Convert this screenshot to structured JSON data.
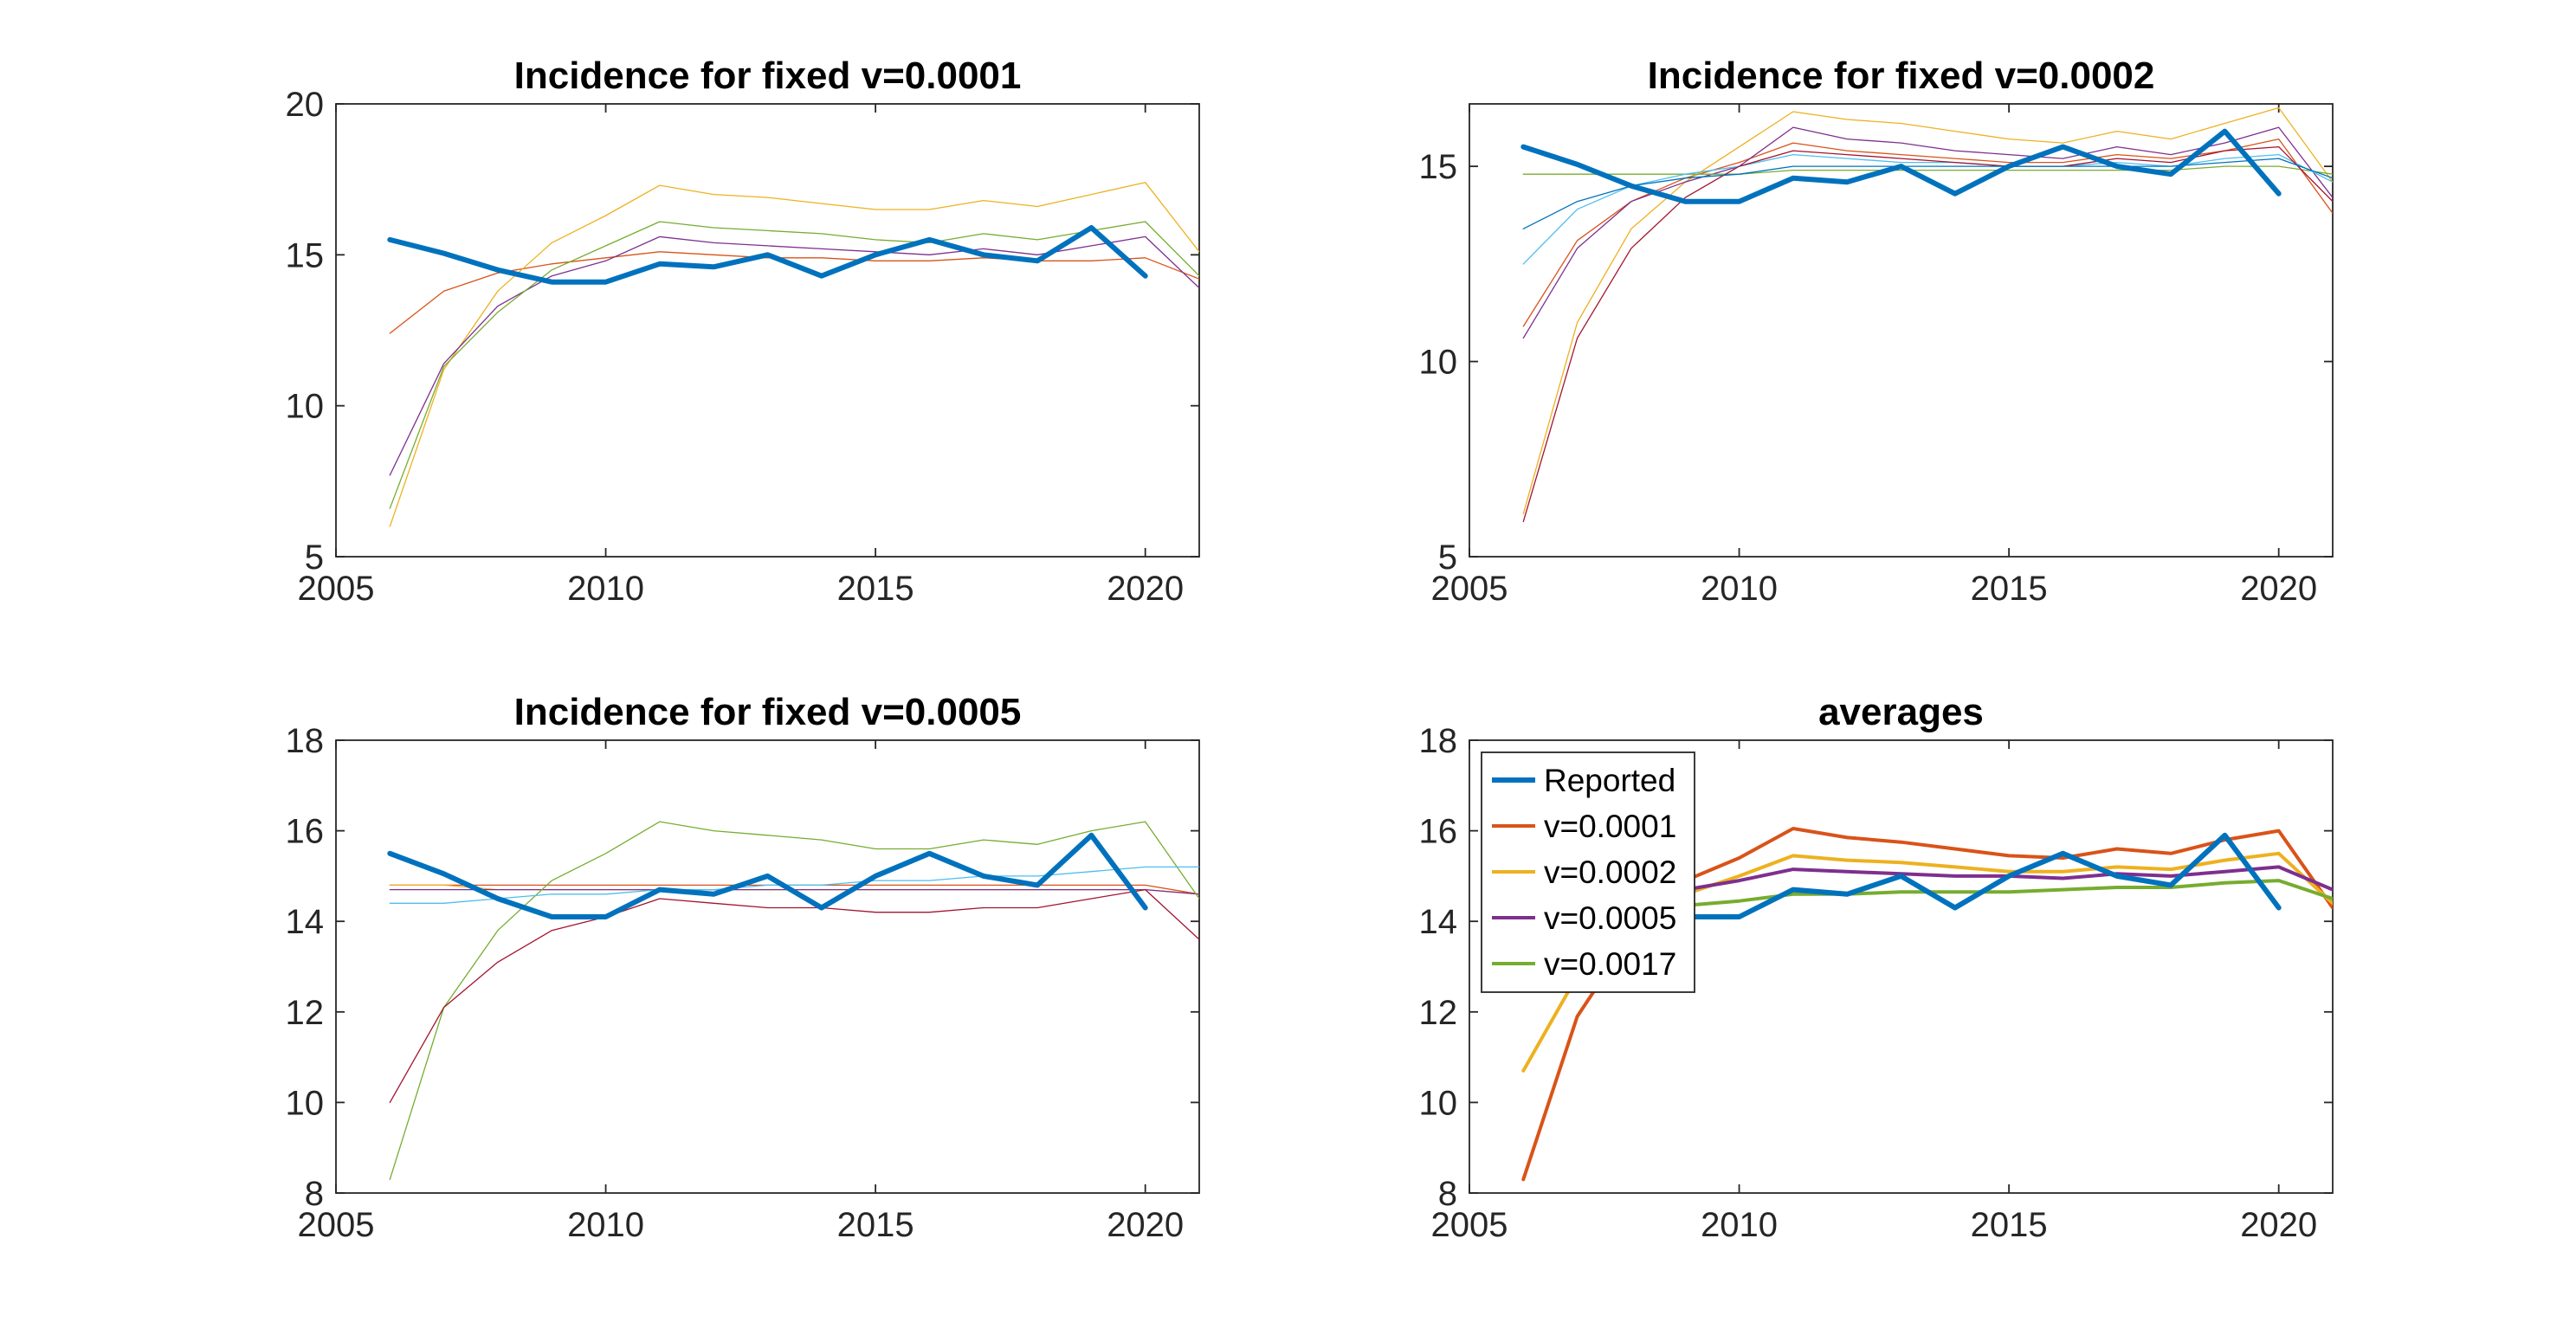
{
  "chart_data": [
    {
      "type": "line",
      "title": "Incidence for fixed v=0.0001",
      "xlim": [
        2005,
        2021
      ],
      "ylim": [
        5,
        20
      ],
      "xticks": [
        2005,
        2010,
        2015,
        2020
      ],
      "yticks": [
        5,
        10,
        15,
        20
      ],
      "x": [
        2006,
        2007,
        2008,
        2009,
        2010,
        2011,
        2012,
        2013,
        2014,
        2015,
        2016,
        2017,
        2018,
        2019,
        2020,
        2021
      ],
      "series": [
        {
          "color": "#0072BD",
          "width": 6,
          "values": [
            15.5,
            15.05,
            14.5,
            14.1,
            14.1,
            14.7,
            14.6,
            15.0,
            14.3,
            15.0,
            15.5,
            15.0,
            14.8,
            15.9,
            14.3,
            null
          ]
        },
        {
          "color": "#D95319",
          "width": 1.3,
          "values": [
            12.4,
            13.8,
            14.4,
            14.7,
            14.9,
            15.1,
            15.0,
            14.9,
            14.9,
            14.8,
            14.8,
            14.9,
            14.8,
            14.8,
            14.9,
            14.2
          ]
        },
        {
          "color": "#EDB120",
          "width": 1.3,
          "values": [
            6.0,
            11.2,
            13.8,
            15.4,
            16.3,
            17.3,
            17.0,
            16.9,
            16.7,
            16.5,
            16.5,
            16.8,
            16.6,
            17.0,
            17.4,
            15.1
          ]
        },
        {
          "color": "#7E2F8E",
          "width": 1.3,
          "values": [
            7.7,
            11.4,
            13.3,
            14.3,
            14.8,
            15.6,
            15.4,
            15.3,
            15.2,
            15.1,
            15.0,
            15.2,
            15.0,
            15.3,
            15.6,
            13.9
          ]
        },
        {
          "color": "#77AC30",
          "width": 1.3,
          "values": [
            6.6,
            11.3,
            13.1,
            14.5,
            15.3,
            16.1,
            15.9,
            15.8,
            15.7,
            15.5,
            15.4,
            15.7,
            15.5,
            15.8,
            16.1,
            14.3
          ]
        }
      ]
    },
    {
      "type": "line",
      "title": "Incidence for fixed v=0.0002",
      "xlim": [
        2005,
        2021
      ],
      "ylim": [
        5,
        16.6
      ],
      "xticks": [
        2005,
        2010,
        2015,
        2020
      ],
      "yticks": [
        5,
        10,
        15
      ],
      "x": [
        2006,
        2007,
        2008,
        2009,
        2010,
        2011,
        2012,
        2013,
        2014,
        2015,
        2016,
        2017,
        2018,
        2019,
        2020,
        2021
      ],
      "series": [
        {
          "color": "#0072BD",
          "width": 6,
          "values": [
            15.5,
            15.05,
            14.5,
            14.1,
            14.1,
            14.7,
            14.6,
            15.0,
            14.3,
            15.0,
            15.5,
            15.0,
            14.8,
            15.9,
            14.3,
            null
          ]
        },
        {
          "color": "#D95319",
          "width": 1.3,
          "values": [
            10.9,
            13.1,
            14.1,
            14.7,
            15.1,
            15.6,
            15.4,
            15.3,
            15.2,
            15.1,
            15.1,
            15.3,
            15.2,
            15.4,
            15.7,
            13.8
          ]
        },
        {
          "color": "#EDB120",
          "width": 1.3,
          "values": [
            6.1,
            11.0,
            13.4,
            14.6,
            15.5,
            16.4,
            16.2,
            16.1,
            15.9,
            15.7,
            15.6,
            15.9,
            15.7,
            16.1,
            16.5,
            14.6
          ]
        },
        {
          "color": "#7E2F8E",
          "width": 1.3,
          "values": [
            10.6,
            12.9,
            14.1,
            14.6,
            15.0,
            16.0,
            15.7,
            15.6,
            15.4,
            15.3,
            15.2,
            15.5,
            15.3,
            15.6,
            16.0,
            14.2
          ]
        },
        {
          "color": "#77AC30",
          "width": 1.3,
          "values": [
            14.8,
            14.8,
            14.8,
            14.8,
            14.8,
            14.9,
            14.9,
            14.9,
            14.9,
            14.9,
            14.9,
            14.9,
            14.9,
            15.0,
            15.0,
            14.8
          ]
        },
        {
          "color": "#4DBEEE",
          "width": 1.3,
          "values": [
            12.5,
            13.9,
            14.5,
            14.8,
            15.0,
            15.3,
            15.2,
            15.1,
            15.1,
            15.0,
            15.0,
            15.1,
            15.0,
            15.2,
            15.3,
            14.6
          ]
        },
        {
          "color": "#A2142F",
          "width": 1.3,
          "values": [
            5.9,
            10.6,
            12.9,
            14.2,
            15.0,
            15.4,
            15.3,
            15.2,
            15.1,
            15.0,
            15.0,
            15.2,
            15.1,
            15.4,
            15.5,
            14.1
          ]
        },
        {
          "color": "#0072BD",
          "width": 1.3,
          "values": [
            13.4,
            14.1,
            14.5,
            14.7,
            14.8,
            15.0,
            15.0,
            15.0,
            15.0,
            15.0,
            15.0,
            15.0,
            15.0,
            15.1,
            15.2,
            14.7
          ]
        }
      ]
    },
    {
      "type": "line",
      "title": "Incidence for fixed v=0.0005",
      "xlim": [
        2005,
        2021
      ],
      "ylim": [
        8,
        18
      ],
      "xticks": [
        2005,
        2010,
        2015,
        2020
      ],
      "yticks": [
        8,
        10,
        12,
        14,
        16,
        18
      ],
      "x": [
        2006,
        2007,
        2008,
        2009,
        2010,
        2011,
        2012,
        2013,
        2014,
        2015,
        2016,
        2017,
        2018,
        2019,
        2020,
        2021
      ],
      "series": [
        {
          "color": "#0072BD",
          "width": 6,
          "values": [
            15.5,
            15.05,
            14.5,
            14.1,
            14.1,
            14.7,
            14.6,
            15.0,
            14.3,
            15.0,
            15.5,
            15.0,
            14.8,
            15.9,
            14.3,
            null
          ]
        },
        {
          "color": "#D95319",
          "width": 1.3,
          "values": [
            14.8,
            14.8,
            14.8,
            14.8,
            14.8,
            14.8,
            14.8,
            14.8,
            14.8,
            14.8,
            14.8,
            14.8,
            14.8,
            14.8,
            14.8,
            14.6
          ]
        },
        {
          "color": "#EDB120",
          "width": 1.3,
          "values": [
            14.8,
            14.8,
            14.7,
            14.7,
            14.7,
            14.7,
            14.7,
            14.7,
            14.7,
            14.7,
            14.7,
            14.7,
            14.7,
            14.7,
            14.7,
            14.6
          ]
        },
        {
          "color": "#7E2F8E",
          "width": 1.3,
          "values": [
            14.7,
            14.7,
            14.7,
            14.7,
            14.7,
            14.7,
            14.7,
            14.7,
            14.7,
            14.7,
            14.7,
            14.7,
            14.7,
            14.7,
            14.7,
            14.6
          ]
        },
        {
          "color": "#77AC30",
          "width": 1.3,
          "values": [
            8.3,
            12.1,
            13.8,
            14.9,
            15.5,
            16.2,
            16.0,
            15.9,
            15.8,
            15.6,
            15.6,
            15.8,
            15.7,
            16.0,
            16.2,
            14.5
          ]
        },
        {
          "color": "#4DBEEE",
          "width": 1.3,
          "values": [
            14.4,
            14.4,
            14.5,
            14.6,
            14.6,
            14.7,
            14.7,
            14.8,
            14.8,
            14.9,
            14.9,
            15.0,
            15.0,
            15.1,
            15.2,
            15.2
          ]
        },
        {
          "color": "#A2142F",
          "width": 1.3,
          "values": [
            10.0,
            12.1,
            13.1,
            13.8,
            14.1,
            14.5,
            14.4,
            14.3,
            14.3,
            14.2,
            14.2,
            14.3,
            14.3,
            14.5,
            14.7,
            13.6
          ]
        }
      ]
    },
    {
      "type": "line",
      "title": "averages",
      "xlim": [
        2005,
        2021
      ],
      "ylim": [
        8,
        18
      ],
      "xticks": [
        2005,
        2010,
        2015,
        2020
      ],
      "yticks": [
        8,
        10,
        12,
        14,
        16,
        18
      ],
      "legend_location": "top-left",
      "x": [
        2006,
        2007,
        2008,
        2009,
        2010,
        2011,
        2012,
        2013,
        2014,
        2015,
        2016,
        2017,
        2018,
        2019,
        2020,
        2021
      ],
      "series": [
        {
          "name": "Reported",
          "color": "#0072BD",
          "width": 6,
          "values": [
            15.5,
            15.05,
            14.5,
            14.1,
            14.1,
            14.7,
            14.6,
            15.0,
            14.3,
            15.0,
            15.5,
            15.0,
            14.8,
            15.9,
            14.3,
            null
          ]
        },
        {
          "name": "v=0.0001",
          "color": "#D95319",
          "width": 4,
          "values": [
            8.3,
            11.9,
            13.7,
            14.9,
            15.4,
            16.05,
            15.85,
            15.75,
            15.6,
            15.45,
            15.4,
            15.6,
            15.5,
            15.8,
            16.0,
            14.3
          ]
        },
        {
          "name": "v=0.0002",
          "color": "#EDB120",
          "width": 4,
          "values": [
            10.7,
            12.8,
            13.9,
            14.6,
            15.0,
            15.45,
            15.35,
            15.3,
            15.2,
            15.1,
            15.1,
            15.2,
            15.15,
            15.35,
            15.5,
            14.4
          ]
        },
        {
          "name": "v=0.0005",
          "color": "#7E2F8E",
          "width": 4,
          "values": [
            14.2,
            14.4,
            14.5,
            14.7,
            14.9,
            15.15,
            15.1,
            15.05,
            15.0,
            15.0,
            14.95,
            15.05,
            15.0,
            15.1,
            15.2,
            14.7
          ]
        },
        {
          "name": "v=0.0017",
          "color": "#77AC30",
          "width": 4,
          "values": [
            14.2,
            14.25,
            14.3,
            14.35,
            14.45,
            14.6,
            14.6,
            14.65,
            14.65,
            14.65,
            14.7,
            14.75,
            14.75,
            14.85,
            14.9,
            14.5
          ]
        }
      ]
    }
  ]
}
